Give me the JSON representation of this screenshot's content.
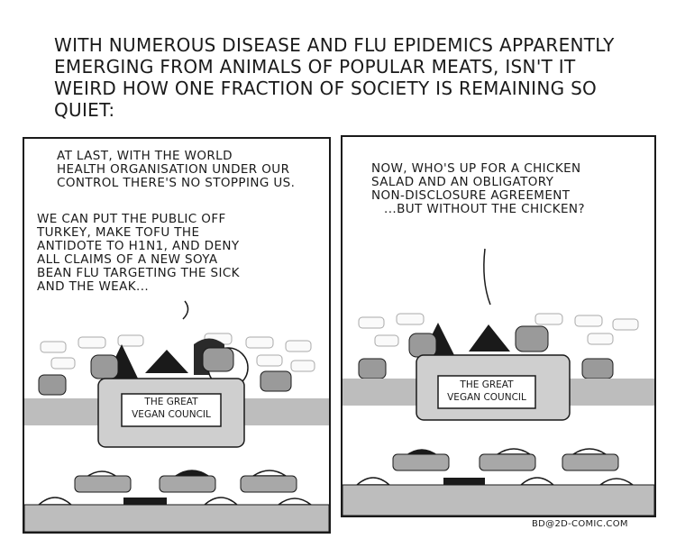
{
  "caption": {
    "line1": "With numerous disease and flu epidemics apparently",
    "line2": "emerging from animals of popular meats, isn't it",
    "line3": "weird how one fraction of society is remaining so quiet:"
  },
  "panel1": {
    "speech_a": {
      "line1": "At last, with the World",
      "line2": "Health Organisation under our",
      "line3": "control there's no stopping us."
    },
    "speech_b": {
      "line1": "We can put the public off",
      "line2": "turkey, make tofu the",
      "line3": "antidote to H1N1, and deny",
      "line4": "all claims of a new soya",
      "line5": "bean flu targeting the sick",
      "line6": "and the weak..."
    },
    "sign": {
      "line1": "The Great",
      "line2": "Vegan Council"
    }
  },
  "panel2": {
    "speech": {
      "line1": "Now, who's up for a chicken",
      "line2": "salad and an obligatory",
      "line3": "non-disclosure agreement",
      "line4": "...but without the chicken?"
    },
    "sign": {
      "line1": "The Great",
      "line2": "Vegan Council"
    }
  },
  "credit": "bd@2d-comic.com"
}
